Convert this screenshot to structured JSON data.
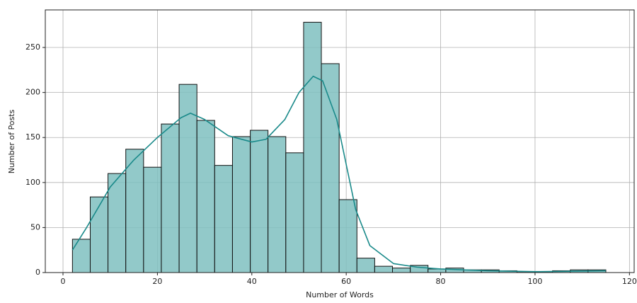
{
  "chart_data": {
    "type": "histogram",
    "x_label": "Number of Words",
    "y_label": "Number of Posts",
    "bins": [
      2,
      5.77,
      9.53,
      13.3,
      17.07,
      20.83,
      24.6,
      28.37,
      32.13,
      35.9,
      39.67,
      43.43,
      47.2,
      50.97,
      54.73,
      58.5,
      62.27,
      66.03,
      69.8,
      73.57,
      77.33,
      81.1,
      84.87,
      88.63,
      92.4,
      96.17,
      99.93,
      103.7,
      107.47,
      111.23,
      115
    ],
    "values": [
      37,
      84,
      110,
      137,
      117,
      165,
      209,
      169,
      119,
      151,
      158,
      151,
      133,
      278,
      232,
      81,
      16,
      7,
      5,
      8,
      4,
      5,
      3,
      3,
      2,
      1,
      1,
      2,
      3,
      3
    ],
    "color": "#7fbfbf",
    "kde": {
      "color": "#1a8a8a",
      "x": [
        2,
        5,
        10,
        15,
        20,
        25,
        27,
        30,
        35,
        40,
        43,
        47,
        50,
        53,
        55,
        58,
        60,
        62,
        65,
        70,
        75,
        80,
        90,
        100,
        115
      ],
      "y": [
        25,
        50,
        95,
        125,
        150,
        172,
        177,
        170,
        152,
        145,
        148,
        170,
        200,
        218,
        213,
        170,
        120,
        70,
        30,
        10,
        6,
        4,
        2,
        1,
        2
      ]
    },
    "xlim": [
      -3.75,
      121
    ],
    "ylim": [
      0,
      291.7
    ],
    "xticks": [
      0,
      20,
      40,
      60,
      80,
      100,
      120
    ],
    "yticks": [
      0,
      50,
      100,
      150,
      200,
      250
    ],
    "grid": true
  }
}
